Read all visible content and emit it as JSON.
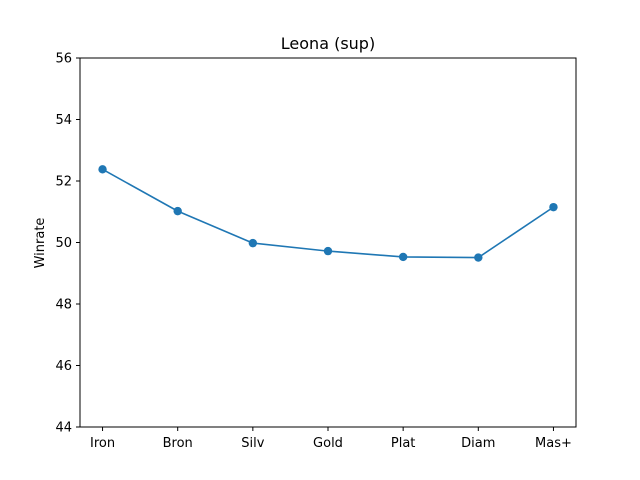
{
  "chart_data": {
    "type": "line",
    "title": "Leona (sup)",
    "xlabel": "",
    "ylabel": "Winrate",
    "categories": [
      "Iron",
      "Bron",
      "Silv",
      "Gold",
      "Plat",
      "Diam",
      "Mas+"
    ],
    "series": [
      {
        "values": [
          52.38,
          51.02,
          49.98,
          49.72,
          49.53,
          49.51,
          51.15
        ]
      }
    ],
    "ylim": [
      44,
      56
    ],
    "yticks": [
      44,
      46,
      48,
      50,
      52,
      54,
      56
    ],
    "grid": false,
    "marker": "circle",
    "line_color": "#1f77b4"
  }
}
